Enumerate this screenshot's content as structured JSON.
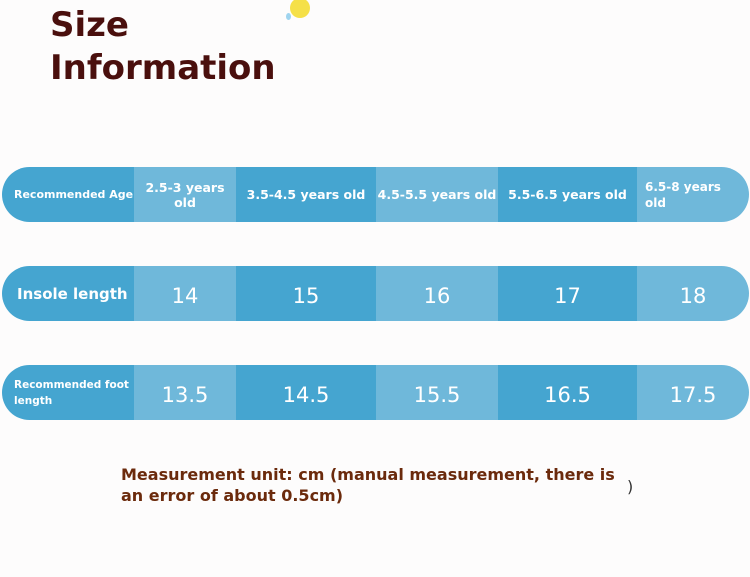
{
  "header": {
    "title": "Size\nInformation"
  },
  "table": {
    "rows": [
      {
        "label": "Recommended Age",
        "values": [
          "2.5-3 years old",
          "3.5-4.5 years old",
          "4.5-5.5 years old",
          "5.5-6.5 years old",
          "6.5-8 years old"
        ]
      },
      {
        "label": "Insole length",
        "values": [
          "14",
          "15",
          "16",
          "17",
          "18"
        ]
      },
      {
        "label": "Recommended foot length",
        "values": [
          "13.5",
          "14.5",
          "15.5",
          "16.5",
          "17.5"
        ]
      }
    ]
  },
  "footer": {
    "note": "Measurement unit: cm (manual measurement, there is an error of about 0.5cm)",
    "closing_paren": ")"
  },
  "colors": {
    "title": "#4a0f0d",
    "cell_dark": "#45a5d0",
    "cell_light": "#6fb8da",
    "note": "#6b2a0c"
  }
}
